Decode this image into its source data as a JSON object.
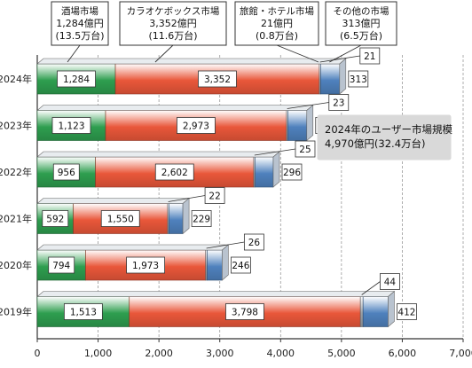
{
  "chart_data": {
    "type": "bar",
    "orientation": "horizontal",
    "stacked": true,
    "categories": [
      "2024年",
      "2023年",
      "2022年",
      "2021年",
      "2020年",
      "2019年"
    ],
    "series": [
      {
        "name": "酒場市場",
        "values": [
          1284,
          1123,
          956,
          592,
          794,
          1513
        ],
        "color": "#2e9e4f"
      },
      {
        "name": "カラオケボックス市場",
        "values": [
          3352,
          2973,
          2602,
          1550,
          1973,
          3798
        ],
        "color": "#e9573a"
      },
      {
        "name": "旅館・ホテル市場",
        "values": [
          21,
          23,
          25,
          22,
          26,
          44
        ],
        "color": "#9aa0a6"
      },
      {
        "name": "その他の市場",
        "values": [
          313,
          311,
          296,
          229,
          246,
          412
        ],
        "color": "#4f81bd"
      }
    ],
    "xlim": [
      0,
      7000
    ],
    "xticks": [
      "0",
      "1,000",
      "2,000",
      "3,000",
      "4,000",
      "5,000",
      "6,000",
      "7,000"
    ],
    "value_labels": [
      [
        "1,284",
        "1,123",
        "956",
        "592",
        "794",
        "1,513"
      ],
      [
        "3,352",
        "2,973",
        "2,602",
        "1,550",
        "1,973",
        "3,798"
      ],
      [
        "21",
        "23",
        "25",
        "22",
        "26",
        "44"
      ],
      [
        "313",
        "311",
        "296",
        "229",
        "246",
        "412"
      ]
    ],
    "legend_boxes": [
      {
        "series": 0,
        "lines": [
          "酒場市場",
          "1,284億円",
          "(13.5万台)"
        ]
      },
      {
        "series": 1,
        "lines": [
          "カラオケボックス市場",
          "3,352億円",
          "(11.6万台)"
        ]
      },
      {
        "series": 2,
        "lines": [
          "旅館・ホテル市場",
          "21億円",
          "(0.8万台)"
        ]
      },
      {
        "series": 3,
        "lines": [
          "その他の市場",
          "313億円",
          "(6.5万台)"
        ]
      }
    ],
    "annotation": {
      "lines": [
        "2024年のユーザー市場規模",
        "4,970億円(32.4万台)"
      ]
    },
    "grid": true
  }
}
